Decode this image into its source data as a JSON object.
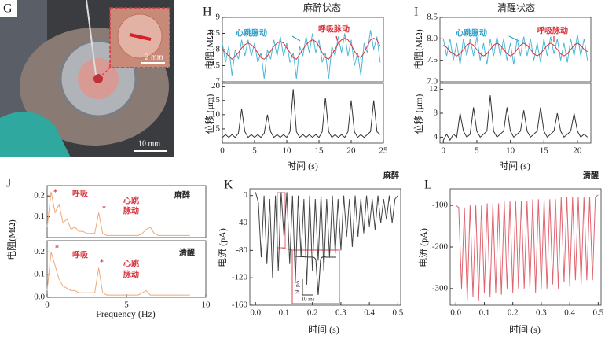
{
  "photo": {
    "label": "G",
    "inset_scale": "2 mm",
    "scale": "10 mm"
  },
  "chart_data": [
    {
      "type": "line",
      "label": "H",
      "title": "麻醉状态",
      "ylabel": "电阻(MΩ)",
      "x": [
        0,
        0.5,
        1,
        1.5,
        2,
        2.5,
        3,
        3.5,
        4,
        4.5,
        5,
        5.5,
        6,
        6.5,
        7,
        7.5,
        8,
        8.5,
        9,
        9.5,
        10,
        10.5,
        11,
        11.5,
        12,
        12.5,
        13,
        13.5,
        14,
        14.5,
        15,
        15.5,
        16,
        16.5,
        17,
        17.5,
        18,
        18.5,
        19,
        19.5,
        20,
        20.5,
        21,
        21.5,
        22,
        22.5,
        23,
        23.5,
        24,
        24.5
      ],
      "series": [
        {
          "color": "#4ab8d8",
          "values": [
            8.2,
            7.6,
            8.1,
            7.2,
            8.0,
            7.7,
            8.3,
            7.8,
            8.3,
            7.8,
            8.2,
            7.6,
            7.9,
            7.1,
            8.0,
            7.7,
            8.3,
            7.8,
            8.4,
            7.8,
            8.2,
            7.6,
            7.9,
            7.1,
            8.1,
            7.8,
            8.4,
            7.9,
            8.5,
            7.9,
            8.3,
            7.6,
            7.9,
            7.1,
            8.1,
            7.8,
            8.4,
            7.9,
            8.5,
            7.8,
            8.3,
            7.5,
            7.9,
            7.2,
            8.2,
            7.9,
            8.6,
            8.0,
            8.4,
            7.6
          ]
        },
        {
          "color": "#d8323c",
          "values": [
            8.0,
            7.9,
            7.8,
            7.7,
            7.8,
            7.9,
            8.05,
            8.15,
            8.2,
            8.15,
            8.05,
            7.9,
            7.75,
            7.7,
            7.8,
            7.95,
            8.1,
            8.2,
            8.25,
            8.2,
            8.05,
            7.9,
            7.75,
            7.7,
            7.85,
            8.0,
            8.15,
            8.25,
            8.3,
            8.25,
            8.1,
            7.9,
            7.75,
            7.7,
            7.85,
            8.0,
            8.2,
            8.3,
            8.35,
            8.3,
            8.15,
            7.95,
            7.8,
            7.75,
            7.9,
            8.1,
            8.3,
            8.35,
            8.3,
            8.1
          ]
        }
      ],
      "xlim": [
        0,
        25
      ],
      "ylim": [
        7,
        9
      ],
      "yticks": [
        7,
        7.5,
        8,
        8.5,
        9
      ],
      "annotations": [
        {
          "text": "心跳脉动",
          "color": "#2a9cc8"
        },
        {
          "text": "呼吸脉动",
          "color": "#d8323c"
        }
      ]
    },
    {
      "type": "line",
      "xlabel": "时间 (s)",
      "ylabel": "位移 (μm)",
      "x": [
        0,
        0.5,
        1,
        1.5,
        2,
        2.5,
        3,
        3.5,
        4,
        4.5,
        5,
        5.5,
        6,
        6.5,
        7,
        7.5,
        8,
        8.5,
        9,
        9.5,
        10,
        10.5,
        11,
        11.5,
        12,
        12.5,
        13,
        13.5,
        14,
        14.5,
        15,
        15.5,
        16,
        16.5,
        17,
        17.5,
        18,
        18.5,
        19,
        19.5,
        20,
        20.5,
        21,
        21.5,
        22,
        22.5,
        23,
        23.5,
        24,
        24.5
      ],
      "series": [
        {
          "color": "#333333",
          "values": [
            2,
            3,
            2,
            3,
            2,
            3.5,
            12,
            4,
            2,
            3,
            2,
            3,
            2,
            3.5,
            10,
            4,
            2,
            3,
            2,
            3,
            2,
            4,
            19,
            4,
            2,
            3,
            2,
            3,
            2,
            3,
            2,
            4,
            16,
            4,
            2,
            3,
            2,
            3,
            2,
            4,
            15,
            4,
            2,
            3,
            2,
            3,
            4,
            15,
            4,
            3
          ]
        }
      ],
      "xlim": [
        0,
        25
      ],
      "ylim": [
        0,
        21
      ],
      "yticks": [
        5,
        10,
        15,
        20
      ],
      "xticks": [
        0,
        5,
        10,
        15,
        20,
        25
      ]
    },
    {
      "type": "line",
      "label": "I",
      "title": "清醒状态",
      "ylabel": "电阻(MΩ)",
      "x": [
        0,
        0.5,
        1,
        1.5,
        2,
        2.5,
        3,
        3.5,
        4,
        4.5,
        5,
        5.5,
        6,
        6.5,
        7,
        7.5,
        8,
        8.5,
        9,
        9.5,
        10,
        10.5,
        11,
        11.5,
        12,
        12.5,
        13,
        13.5,
        14,
        14.5,
        15,
        15.5,
        16,
        16.5,
        17,
        17.5,
        18,
        18.5,
        19,
        19.5,
        20,
        20.5,
        21,
        21.5
      ],
      "series": [
        {
          "color": "#4ab8d8",
          "values": [
            8.0,
            7.6,
            8.0,
            7.5,
            7.9,
            7.4,
            8.0,
            7.6,
            8.0,
            7.6,
            8.05,
            7.5,
            7.9,
            7.4,
            8.0,
            7.6,
            8.05,
            7.6,
            8.0,
            7.5,
            7.9,
            7.4,
            8.0,
            7.6,
            8.05,
            7.6,
            8.0,
            7.5,
            7.9,
            7.45,
            8.0,
            7.6,
            8.05,
            7.65,
            8.0,
            7.5,
            7.9,
            7.45,
            8.0,
            7.6,
            8.1,
            7.6,
            8.0,
            7.5
          ]
        },
        {
          "color": "#d8323c",
          "values": [
            7.85,
            7.8,
            7.7,
            7.65,
            7.6,
            7.65,
            7.75,
            7.85,
            7.9,
            7.85,
            7.75,
            7.65,
            7.6,
            7.65,
            7.75,
            7.85,
            7.9,
            7.85,
            7.75,
            7.65,
            7.6,
            7.65,
            7.75,
            7.85,
            7.9,
            7.85,
            7.75,
            7.65,
            7.6,
            7.65,
            7.75,
            7.85,
            7.9,
            7.85,
            7.75,
            7.65,
            7.6,
            7.65,
            7.75,
            7.85,
            7.9,
            7.85,
            7.75,
            7.7
          ]
        }
      ],
      "xlim": [
        -0.5,
        22
      ],
      "ylim": [
        7,
        8.5
      ],
      "yticks": [
        {
          "value": 7,
          "label": "7.0"
        },
        7.5,
        {
          "value": 8,
          "label": "8.0"
        },
        8.5
      ],
      "annotations": [
        {
          "text": "心跳脉动",
          "color": "#2a9cc8"
        },
        {
          "text": "呼吸脉动",
          "color": "#d8323c"
        }
      ]
    },
    {
      "type": "line",
      "xlabel": "时间 (s)",
      "ylabel": "位移 (μm)",
      "x": [
        0,
        0.5,
        1,
        1.5,
        2,
        2.5,
        3,
        3.5,
        4,
        4.5,
        5,
        5.5,
        6,
        6.5,
        7,
        7.5,
        8,
        8.5,
        9,
        9.5,
        10,
        10.5,
        11,
        11.5,
        12,
        12.5,
        13,
        13.5,
        14,
        14.5,
        15,
        15.5,
        16,
        16.5,
        17,
        17.5,
        18,
        18.5,
        19,
        19.5,
        20,
        20.5,
        21,
        21.5
      ],
      "series": [
        {
          "color": "#333333",
          "values": [
            3.5,
            4.5,
            3.5,
            4.5,
            4,
            8,
            5,
            4,
            4.5,
            9,
            5,
            4,
            4.5,
            5,
            11,
            5,
            4,
            4.5,
            5,
            9,
            5,
            4,
            4.5,
            5,
            8.5,
            5,
            4,
            4.5,
            5,
            9,
            5,
            4,
            4.5,
            5,
            8,
            5,
            4,
            4.5,
            5,
            8,
            5,
            4,
            4.5,
            4
          ]
        }
      ],
      "xlim": [
        -0.5,
        22
      ],
      "ylim": [
        3,
        13
      ],
      "yticks": [
        4,
        8,
        12
      ],
      "xticks": [
        0,
        5,
        10,
        15,
        20
      ]
    },
    {
      "type": "line",
      "label": "J",
      "ylabel": "电阻(MΩ)",
      "x": [
        0,
        0.25,
        0.5,
        0.75,
        1,
        1.25,
        1.5,
        1.75,
        2,
        2.25,
        2.5,
        2.75,
        3,
        3.25,
        3.5,
        3.75,
        4,
        4.25,
        4.5,
        4.75,
        5,
        5.25,
        5.5,
        5.75,
        6,
        6.25,
        6.5,
        6.75,
        7,
        7.25,
        7.5,
        7.75,
        8,
        8.25,
        8.5,
        8.75,
        9
      ],
      "series": [
        {
          "color": "#f0a878",
          "values": [
            0.05,
            0.22,
            0.12,
            0.16,
            0.07,
            0.09,
            0.04,
            0.05,
            0.03,
            0.03,
            0.02,
            0.02,
            0.02,
            0.12,
            0.02,
            0.01,
            0.01,
            0.01,
            0.01,
            0.01,
            0.01,
            0.01,
            0.01,
            0.01,
            0.02,
            0.04,
            0.05,
            0.02,
            0.01,
            0.01,
            0.01,
            0.01,
            0.01,
            0.01,
            0.01,
            0.01,
            0.01
          ]
        }
      ],
      "xlim": [
        0,
        10
      ],
      "ylim": [
        0,
        0.25
      ],
      "yticks": [
        0.1,
        0.2
      ],
      "annotations": [
        {
          "text": "*",
          "color": "#d8323c"
        },
        {
          "text": "呼吸",
          "color": "#d8323c"
        },
        {
          "text": "*",
          "color": "#d8323c"
        },
        {
          "text": "心跳",
          "color": "#d8323c"
        },
        {
          "text": "脉动",
          "color": "#d8323c"
        },
        {
          "text": "麻醉",
          "color": "#222"
        }
      ]
    },
    {
      "type": "line",
      "xlabel": "Frequency (Hz)",
      "x": [
        0,
        0.25,
        0.5,
        0.75,
        1,
        1.25,
        1.5,
        1.75,
        2,
        2.25,
        2.5,
        2.75,
        3,
        3.25,
        3.5,
        3.75,
        4,
        4.25,
        4.5,
        4.75,
        5,
        5.25,
        5.5,
        5.75,
        6,
        6.25,
        6.5,
        6.75,
        7,
        7.25,
        7.5,
        7.75,
        8,
        8.25,
        8.5,
        8.75,
        9
      ],
      "series": [
        {
          "color": "#f0a878",
          "values": [
            0.03,
            0.2,
            0.14,
            0.08,
            0.05,
            0.04,
            0.03,
            0.03,
            0.02,
            0.02,
            0.02,
            0.02,
            0.02,
            0.13,
            0.02,
            0.01,
            0.01,
            0.01,
            0.01,
            0.01,
            0.01,
            0.01,
            0.01,
            0.01,
            0.02,
            0.03,
            0.01,
            0.01,
            0.01,
            0.01,
            0.01,
            0.01,
            0.01,
            0.01,
            0.01,
            0.01,
            0.01
          ]
        }
      ],
      "xlim": [
        0,
        10
      ],
      "ylim": [
        0,
        0.25
      ],
      "yticks": [
        {
          "value": 0,
          "label": "0.0"
        },
        0.1,
        0.2
      ],
      "xticks": [
        0,
        5,
        10
      ],
      "annotations": [
        {
          "text": "*",
          "color": "#d8323c"
        },
        {
          "text": "呼吸",
          "color": "#d8323c"
        },
        {
          "text": "*",
          "color": "#d8323c"
        },
        {
          "text": "心跳",
          "color": "#d8323c"
        },
        {
          "text": "脉动",
          "color": "#d8323c"
        },
        {
          "text": "清醒",
          "color": "#222"
        }
      ]
    },
    {
      "type": "line",
      "label": "K",
      "xlabel": "时间 (s)",
      "ylabel": "电流 (pA)",
      "x": [
        0,
        0.01,
        0.02,
        0.03,
        0.04,
        0.05,
        0.06,
        0.07,
        0.08,
        0.09,
        0.1,
        0.11,
        0.12,
        0.13,
        0.14,
        0.15,
        0.16,
        0.17,
        0.18,
        0.19,
        0.2,
        0.21,
        0.22,
        0.23,
        0.24,
        0.25,
        0.26,
        0.27,
        0.28,
        0.29,
        0.3,
        0.31,
        0.32,
        0.33,
        0.34,
        0.35,
        0.36,
        0.37,
        0.38,
        0.39,
        0.4,
        0.41,
        0.42,
        0.43,
        0.44,
        0.45,
        0.46,
        0.47,
        0.48,
        0.49,
        0.5
      ],
      "series": [
        {
          "color": "#444444",
          "values": [
            5,
            -10,
            -90,
            0,
            -100,
            -5,
            -120,
            0,
            -110,
            5,
            -60,
            5,
            -100,
            0,
            -125,
            0,
            -90,
            -5,
            -130,
            0,
            -110,
            -5,
            -95,
            0,
            -110,
            -5,
            -90,
            0,
            -85,
            -5,
            -80,
            0,
            -60,
            -5,
            -75,
            0,
            -60,
            -5,
            -55,
            0,
            -45,
            -5,
            -50,
            0,
            -40,
            -5,
            -35,
            0,
            -40,
            -5,
            0
          ]
        }
      ],
      "xlim": [
        -0.02,
        0.51
      ],
      "ylim": [
        -160,
        10
      ],
      "yticks": [
        0,
        -40,
        -80,
        -120,
        -160
      ],
      "xticks": [
        {
          "value": 0,
          "label": "0.0"
        },
        0.1,
        0.2,
        0.3,
        0.4,
        0.5
      ],
      "annotations": [
        {
          "text": "麻醉",
          "color": "#222"
        }
      ],
      "inset_labels": [
        "50 pA",
        "10 ms"
      ]
    },
    {
      "type": "line",
      "label": "L",
      "xlabel": "时间 (s)",
      "ylabel": "电流 (pA)",
      "x": [
        0,
        0.01,
        0.02,
        0.03,
        0.04,
        0.05,
        0.06,
        0.07,
        0.08,
        0.09,
        0.1,
        0.11,
        0.12,
        0.13,
        0.14,
        0.15,
        0.16,
        0.17,
        0.18,
        0.19,
        0.2,
        0.21,
        0.22,
        0.23,
        0.24,
        0.25,
        0.26,
        0.27,
        0.28,
        0.29,
        0.3,
        0.31,
        0.32,
        0.33,
        0.34,
        0.35,
        0.36,
        0.37,
        0.38,
        0.39,
        0.4,
        0.41,
        0.42,
        0.43,
        0.44,
        0.45,
        0.46,
        0.47,
        0.48,
        0.49,
        0.5
      ],
      "series": [
        {
          "color": "#e06470",
          "values": [
            -100,
            -105,
            -300,
            -105,
            -330,
            -100,
            -320,
            -100,
            -330,
            -100,
            -310,
            -95,
            -320,
            -95,
            -310,
            -95,
            -315,
            -90,
            -300,
            -90,
            -310,
            -90,
            -300,
            -90,
            -300,
            -90,
            -300,
            -85,
            -310,
            -85,
            -300,
            -85,
            -300,
            -85,
            -290,
            -85,
            -300,
            -80,
            -285,
            -80,
            -295,
            -80,
            -280,
            -80,
            -290,
            -80,
            -280,
            -80,
            -280,
            -80,
            -75
          ]
        }
      ],
      "xlim": [
        -0.02,
        0.51
      ],
      "ylim": [
        -340,
        -60
      ],
      "yticks": [
        -100,
        -200,
        -300
      ],
      "xticks": [
        {
          "value": 0,
          "label": "0.0"
        },
        0.1,
        0.2,
        0.3,
        0.4,
        0.5
      ],
      "annotations": [
        {
          "text": "清醒",
          "color": "#222"
        }
      ]
    }
  ]
}
